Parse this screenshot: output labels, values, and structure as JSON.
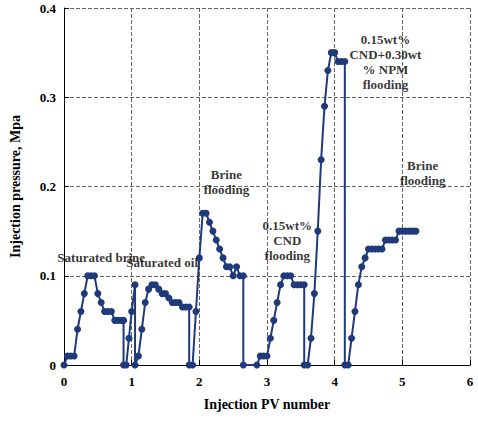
{
  "chart_data": {
    "type": "line",
    "xlabel": "Injection PV number",
    "ylabel": "Injection pressure, Mpa",
    "x": [
      0,
      0.05,
      0.1,
      0.15,
      0.2,
      0.25,
      0.3,
      0.35,
      0.4,
      0.45,
      0.5,
      0.55,
      0.6,
      0.65,
      0.7,
      0.75,
      0.8,
      0.85,
      0.88,
      0.88,
      0.92,
      0.96,
      1.0,
      1.05,
      1.05,
      1.1,
      1.15,
      1.2,
      1.25,
      1.3,
      1.35,
      1.4,
      1.45,
      1.5,
      1.55,
      1.6,
      1.65,
      1.7,
      1.75,
      1.8,
      1.85,
      1.85,
      1.9,
      1.95,
      2.0,
      2.05,
      2.1,
      2.15,
      2.2,
      2.25,
      2.3,
      2.35,
      2.4,
      2.45,
      2.5,
      2.55,
      2.6,
      2.65,
      2.65,
      2.85,
      2.9,
      2.95,
      3.0,
      3.05,
      3.1,
      3.15,
      3.2,
      3.25,
      3.3,
      3.35,
      3.4,
      3.45,
      3.5,
      3.55,
      3.55,
      3.6,
      3.65,
      3.7,
      3.75,
      3.8,
      3.85,
      3.9,
      3.95,
      4.0,
      4.05,
      4.1,
      4.15,
      4.15,
      4.2,
      4.25,
      4.3,
      4.35,
      4.4,
      4.45,
      4.5,
      4.55,
      4.6,
      4.65,
      4.7,
      4.75,
      4.8,
      4.85,
      4.9,
      4.95,
      5.0,
      5.05,
      5.1,
      5.15,
      5.2
    ],
    "values": [
      0,
      0.01,
      0.01,
      0.01,
      0.04,
      0.06,
      0.08,
      0.1,
      0.1,
      0.1,
      0.08,
      0.07,
      0.06,
      0.06,
      0.06,
      0.05,
      0.05,
      0.05,
      0.05,
      0,
      0,
      0.03,
      0.06,
      0.09,
      0,
      0.01,
      0.04,
      0.07,
      0.085,
      0.09,
      0.09,
      0.085,
      0.08,
      0.08,
      0.075,
      0.07,
      0.07,
      0.07,
      0.065,
      0.065,
      0.065,
      0,
      0,
      0.06,
      0.12,
      0.17,
      0.17,
      0.16,
      0.15,
      0.14,
      0.13,
      0.12,
      0.11,
      0.11,
      0.1,
      0.11,
      0.1,
      0.1,
      0,
      0,
      0.01,
      0.01,
      0.01,
      0.03,
      0.05,
      0.07,
      0.09,
      0.1,
      0.1,
      0.1,
      0.09,
      0.09,
      0.09,
      0.09,
      0,
      0,
      0.03,
      0.08,
      0.15,
      0.23,
      0.29,
      0.33,
      0.35,
      0.35,
      0.34,
      0.34,
      0.34,
      0,
      0,
      0.03,
      0.06,
      0.09,
      0.11,
      0.12,
      0.13,
      0.13,
      0.13,
      0.13,
      0.13,
      0.14,
      0.14,
      0.14,
      0.14,
      0.15,
      0.15,
      0.15,
      0.15,
      0.15,
      0.15
    ],
    "color": "#1f3a7a",
    "marker": "circle",
    "xlim": [
      0,
      6
    ],
    "xticks": [
      0,
      1,
      2,
      3,
      4,
      5,
      6
    ],
    "ylim": [
      0,
      0.4
    ],
    "yticks": [
      0,
      0.1,
      0.2,
      0.3,
      0.4
    ],
    "grid": true,
    "annotations": [
      {
        "text": "Saturated brine",
        "x": 0.55,
        "y": 0.12
      },
      {
        "text": "Saturated oil",
        "x": 1.45,
        "y": 0.115
      },
      {
        "text": "Brine\nflooding",
        "x": 2.4,
        "y": 0.205
      },
      {
        "text": "0.15wt%\nCND\nflooding",
        "x": 3.3,
        "y": 0.14
      },
      {
        "text": "0.15wt%\nCND+0.30wt\n% NPM\nflooding",
        "x": 4.75,
        "y": 0.34
      },
      {
        "text": "Brine\nflooding",
        "x": 5.3,
        "y": 0.215
      }
    ]
  }
}
